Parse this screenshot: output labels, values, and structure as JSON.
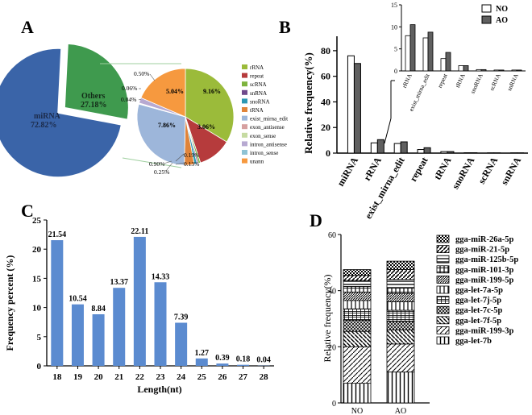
{
  "colors": {
    "miRNA": "#3a64a8",
    "others": "#3f9a4e",
    "rRNA": "#9bbb3a",
    "repeat": "#b63b3c",
    "scRNA": "#7eb33e",
    "snRNA": "#6f4a8c",
    "snoRNA": "#2c98b4",
    "tRNA": "#e0843a",
    "exist_mirna_edit": "#9db6da",
    "exon_antisense": "#d6a0a0",
    "exon_sense": "#c6dba2",
    "intron_antisense": "#b7a9d1",
    "intron_sense": "#8fc3d4",
    "unann": "#f6993f",
    "bar_blue": "#5b8bd0",
    "bar_dark": "#606060",
    "bar_white": "#ffffff"
  },
  "panelA": {
    "letter": "A",
    "main": {
      "miRNA_label": "miRNA",
      "miRNA_pct": "72.82%",
      "others_label": "Others",
      "others_pct": "27.18%"
    },
    "sub_slices": [
      {
        "name": "rRNA",
        "value": 9.16,
        "label": "9.16%"
      },
      {
        "name": "repeat",
        "value": 3.06,
        "label": "3.06%"
      },
      {
        "name": "scRNA",
        "value": 0.19,
        "label": "0.19%"
      },
      {
        "name": "snRNA",
        "value": 0.13,
        "label": "0.13%"
      },
      {
        "name": "snoRNA",
        "value": 0.25,
        "label": "0.25%"
      },
      {
        "name": "tRNA",
        "value": 0.9,
        "label": "0.90%"
      },
      {
        "name": "exist_mirna_edit",
        "value": 7.86,
        "label": "7.86%"
      },
      {
        "name": "exon_antisense",
        "value": 0.04,
        "label": "0.04%"
      },
      {
        "name": "exon_sense",
        "value": 0.06,
        "label": "0.06%"
      },
      {
        "name": "intron_antisense",
        "value": 0.5,
        "label": "0.50%"
      },
      {
        "name": "intron_sense",
        "value": 0.0,
        "label": ""
      },
      {
        "name": "unann",
        "value": 5.04,
        "label": "5.04%"
      }
    ],
    "legend": [
      "rRNA",
      "repeat",
      "scRNA",
      "snRNA",
      "snoRNA",
      "tRNA",
      "exist_mirna_edit",
      "exon_antisense",
      "exon_sense",
      "intron_antisense",
      "intron_sense",
      "unann"
    ]
  },
  "panelB": {
    "letter": "B",
    "ylabel": "Relative frequency(%)",
    "legend": [
      "NO",
      "AO"
    ],
    "chart_data": {
      "type": "bar",
      "categories": [
        "miRNA",
        "rRNA",
        "exist_mirna_edit",
        "repeat",
        "tRNA",
        "snoRNA",
        "scRNA",
        "snRNA"
      ],
      "series": [
        {
          "name": "NO",
          "values": [
            76,
            8,
            7.5,
            2.8,
            1.2,
            0.3,
            0.2,
            0.2
          ]
        },
        {
          "name": "AO",
          "values": [
            70,
            10.5,
            8.8,
            4.2,
            1.2,
            0.3,
            0.2,
            0.2
          ]
        }
      ],
      "ylim": [
        0,
        90
      ],
      "yticks": [
        "0",
        "20",
        "40",
        "60",
        "80"
      ]
    },
    "inset": {
      "categories": [
        "rRNA",
        "exist_mirna_edit",
        "repeat",
        "tRNA",
        "snoRNA",
        "scRNA",
        "snRNA"
      ],
      "ylim": [
        0,
        15
      ],
      "yticks": [
        "0",
        "5",
        "10",
        "15"
      ]
    }
  },
  "panelC": {
    "letter": "C",
    "ylabel": "Frequency percent (%)",
    "xlabel": "Length(nt)",
    "chart_data": {
      "type": "bar",
      "categories": [
        "18",
        "19",
        "20",
        "21",
        "22",
        "23",
        "24",
        "25",
        "26",
        "27",
        "28"
      ],
      "values": [
        21.54,
        10.54,
        8.84,
        13.37,
        22.11,
        14.33,
        7.39,
        1.27,
        0.39,
        0.18,
        0.04
      ],
      "labels": [
        "21.54",
        "10.54",
        "8.84",
        "13.37",
        "22.11",
        "14.33",
        "7.39",
        "1.27",
        "0.39",
        "0.18",
        "0.04"
      ],
      "ylim": [
        0,
        25
      ],
      "yticks": [
        "0",
        "5",
        "10",
        "15",
        "20",
        "25"
      ]
    }
  },
  "panelD": {
    "letter": "D",
    "ylabel": "Relative frequency(%)",
    "chart_data": {
      "type": "bar",
      "stacked": true,
      "categories": [
        "NO",
        "AO"
      ],
      "series": [
        {
          "name": "gga-let-7b",
          "values": [
            7,
            11
          ]
        },
        {
          "name": "gga-miR-199-3p",
          "values": [
            13,
            10
          ]
        },
        {
          "name": "gga-let-7f-5p",
          "values": [
            5.5,
            5
          ]
        },
        {
          "name": "gga-let-7c-5p",
          "values": [
            4,
            3
          ]
        },
        {
          "name": "gga-let-7j-5p",
          "values": [
            4,
            4
          ]
        },
        {
          "name": "gga-let-7a-5p",
          "values": [
            3,
            3
          ]
        },
        {
          "name": "gga-miR-199-5p",
          "values": [
            3,
            3
          ]
        },
        {
          "name": "gga-miR-101-3p",
          "values": [
            2,
            2
          ]
        },
        {
          "name": "gga-miR-125b-5p",
          "values": [
            2,
            3
          ]
        },
        {
          "name": "gga-miR-21-5p",
          "values": [
            2,
            3.5
          ]
        },
        {
          "name": "gga-miR-26a-5p",
          "values": [
            2,
            3
          ]
        }
      ],
      "ylim": [
        0,
        60
      ],
      "yticks": [
        "0",
        "20",
        "40",
        "60"
      ]
    },
    "legend": [
      "gga-miR-26a-5p",
      "gga-miR-21-5p",
      "gga-miR-125b-5p",
      "gga-miR-101-3p",
      "gga-miR-199-5p",
      "gga-let-7a-5p",
      "gga-let-7j-5p",
      "gga-let-7c-5p",
      "gga-let-7f-5p",
      "gga-miR-199-3p",
      "gga-let-7b"
    ]
  }
}
